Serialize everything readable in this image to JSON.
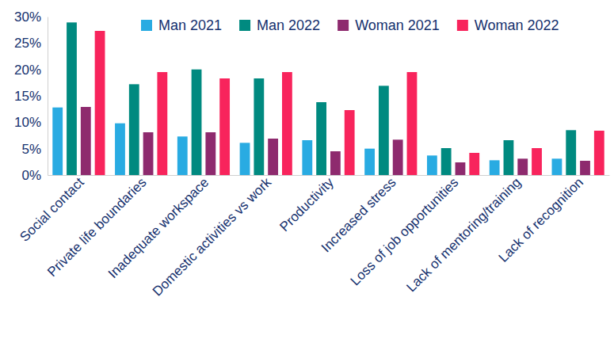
{
  "chart_data": {
    "type": "bar",
    "categories": [
      "Social contact",
      "Private life boundaries",
      "Inadequate workspace",
      "Domestic activities vs work",
      "Productivity",
      "Increased stress",
      "Loss of job opportunities",
      "Lack of mentoring/training",
      "Lack of recognition"
    ],
    "series": [
      {
        "name": "Man 2021",
        "color": "#29abe2",
        "values": [
          12.8,
          9.8,
          7.3,
          6.1,
          6.6,
          5.0,
          3.7,
          2.8,
          3.1
        ]
      },
      {
        "name": "Man 2022",
        "color": "#008a80",
        "values": [
          28.9,
          17.2,
          20.0,
          18.3,
          13.8,
          16.9,
          5.1,
          6.6,
          8.5
        ]
      },
      {
        "name": "Woman 2021",
        "color": "#8e2a6e",
        "values": [
          12.9,
          8.1,
          8.1,
          6.9,
          4.5,
          6.7,
          2.4,
          3.1,
          2.7
        ]
      },
      {
        "name": "Woman 2022",
        "color": "#f8245c",
        "values": [
          27.3,
          19.5,
          18.3,
          19.5,
          12.3,
          19.5,
          4.2,
          5.1,
          8.4
        ]
      }
    ],
    "ylim": [
      0,
      30
    ],
    "yticks": [
      {
        "value": 0,
        "label": "0%"
      },
      {
        "value": 5,
        "label": "5%"
      },
      {
        "value": 10,
        "label": "10%"
      },
      {
        "value": 15,
        "label": "15%"
      },
      {
        "value": 20,
        "label": "20%"
      },
      {
        "value": 25,
        "label": "25%"
      },
      {
        "value": 30,
        "label": "30%"
      }
    ],
    "grid": false,
    "legend": "top"
  }
}
